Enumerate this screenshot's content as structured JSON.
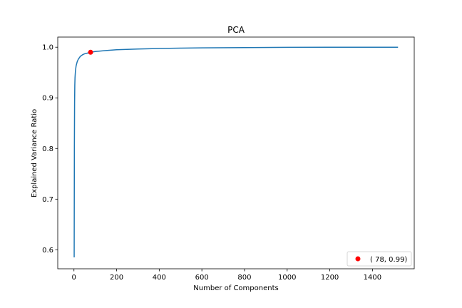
{
  "chart_data": {
    "type": "line",
    "title": "PCA",
    "xlabel": "Number of Components",
    "ylabel": "Explained Variance Ratio",
    "xlim": [
      -76,
      1596
    ],
    "ylim": [
      0.5625,
      1.02
    ],
    "xticks": [
      0,
      200,
      400,
      600,
      800,
      1000,
      1200,
      1400
    ],
    "yticks": [
      0.6,
      0.7,
      0.8,
      0.9,
      1.0
    ],
    "xtick_labels": [
      "0",
      "200",
      "400",
      "600",
      "800",
      "1000",
      "1200",
      "1400"
    ],
    "ytick_labels": [
      "0.6",
      "0.7",
      "0.8",
      "0.9",
      "1.0"
    ],
    "grid": false,
    "legend_position": "bottom-right",
    "series": [
      {
        "color": "#1f77b4",
        "x": [
          1,
          2,
          3,
          4,
          5,
          7,
          10,
          15,
          20,
          30,
          40,
          50,
          60,
          78,
          100,
          150,
          200,
          300,
          400,
          500,
          600,
          800,
          1000,
          1200,
          1400,
          1520
        ],
        "y": [
          0.585,
          0.8,
          0.89,
          0.925,
          0.94,
          0.953,
          0.963,
          0.971,
          0.976,
          0.982,
          0.985,
          0.987,
          0.988,
          0.99,
          0.9915,
          0.9935,
          0.995,
          0.9965,
          0.9975,
          0.9982,
          0.9987,
          0.9993,
          0.9997,
          0.9999,
          1.0,
          1.0
        ]
      }
    ],
    "highlight": {
      "x": 78,
      "y": 0.99,
      "color": "#ff0000",
      "label": "( 78,  0.99)"
    }
  }
}
